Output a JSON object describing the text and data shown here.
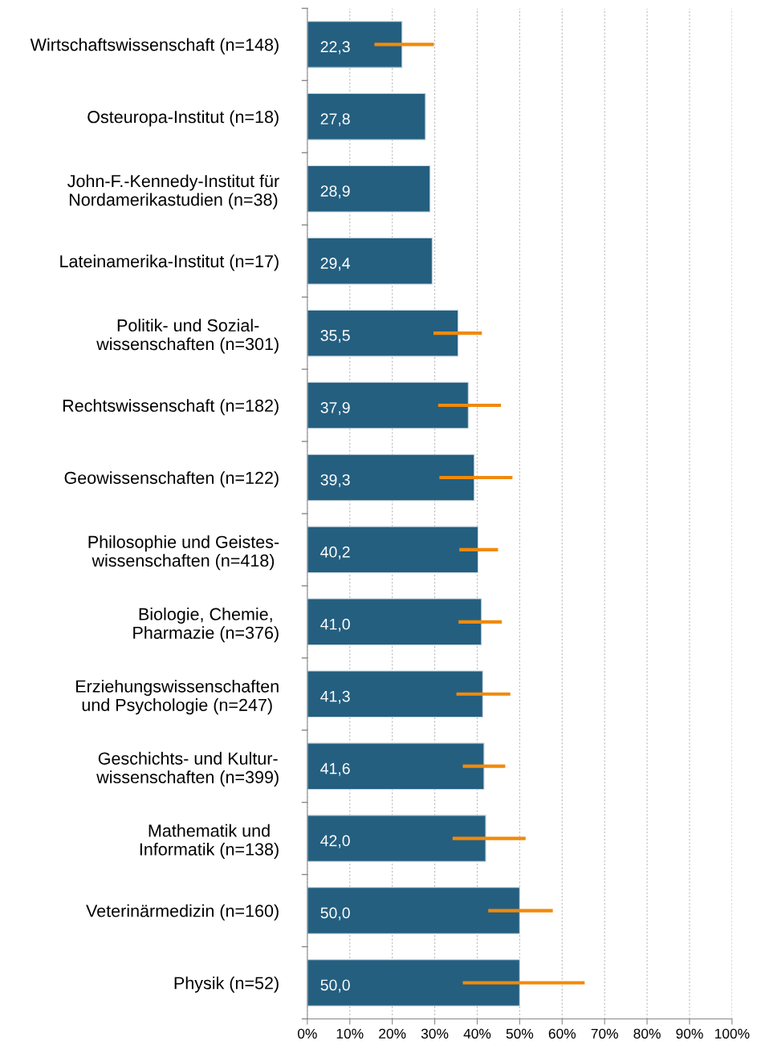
{
  "chart_data": {
    "type": "bar",
    "orientation": "horizontal",
    "categories": [
      "Wirtschaftswissenschaft (n=148)",
      "Osteuropa-Institut (n=18)",
      "John-F.-Kennedy-Institut für\nNordamerikastudien (n=38)",
      "Lateinamerika-Institut (n=17)",
      "Politik- und Sozial-\nwissenschaften (n=301)",
      "Rechtswissenschaft (n=182)",
      "Geowissenschaften (n=122)",
      "Philosophie und Geistes-\nwissenschaften (n=418)",
      "Biologie, Chemie,\nPharmazie (n=376)",
      "Erziehungswissenschaften\nund Psychologie (n=247)",
      "Geschichts- und Kultur-\nwissenschaften (n=399)",
      "Mathematik und\nInformatik (n=138)",
      "Veterinärmedizin (n=160)",
      "Physik (n=52)"
    ],
    "values": [
      22.3,
      27.8,
      28.9,
      29.4,
      35.5,
      37.9,
      39.3,
      40.2,
      41.0,
      41.3,
      41.6,
      42.0,
      50.0,
      50.0
    ],
    "value_labels": [
      "22,3",
      "27,8",
      "28,9",
      "29,4",
      "35,5",
      "37,9",
      "39,3",
      "40,2",
      "41,0",
      "41,3",
      "41,6",
      "42,0",
      "50,0",
      "50,0"
    ],
    "errors": [
      [
        15.8,
        29.8
      ],
      null,
      null,
      null,
      [
        29.7,
        41.1
      ],
      [
        30.8,
        45.6
      ],
      [
        31.1,
        48.3
      ],
      [
        35.8,
        44.9
      ],
      [
        35.6,
        45.8
      ],
      [
        35.1,
        47.8
      ],
      [
        36.6,
        46.6
      ],
      [
        34.2,
        51.4
      ],
      [
        42.6,
        57.8
      ],
      [
        36.6,
        65.3
      ]
    ],
    "color": "#245f80",
    "xlim": [
      0,
      100
    ],
    "xticks": [
      {
        "value": 0,
        "label": "0%"
      },
      {
        "value": 10,
        "label": "10%"
      },
      {
        "value": 20,
        "label": "20%"
      },
      {
        "value": 30,
        "label": "30%"
      },
      {
        "value": 40,
        "label": "40%"
      },
      {
        "value": 50,
        "label": "50%"
      },
      {
        "value": 60,
        "label": "60%"
      },
      {
        "value": 70,
        "label": "70%"
      },
      {
        "value": 80,
        "label": "80%"
      },
      {
        "value": 90,
        "label": "90%"
      },
      {
        "value": 100,
        "label": "100%"
      }
    ],
    "grid": "x"
  }
}
